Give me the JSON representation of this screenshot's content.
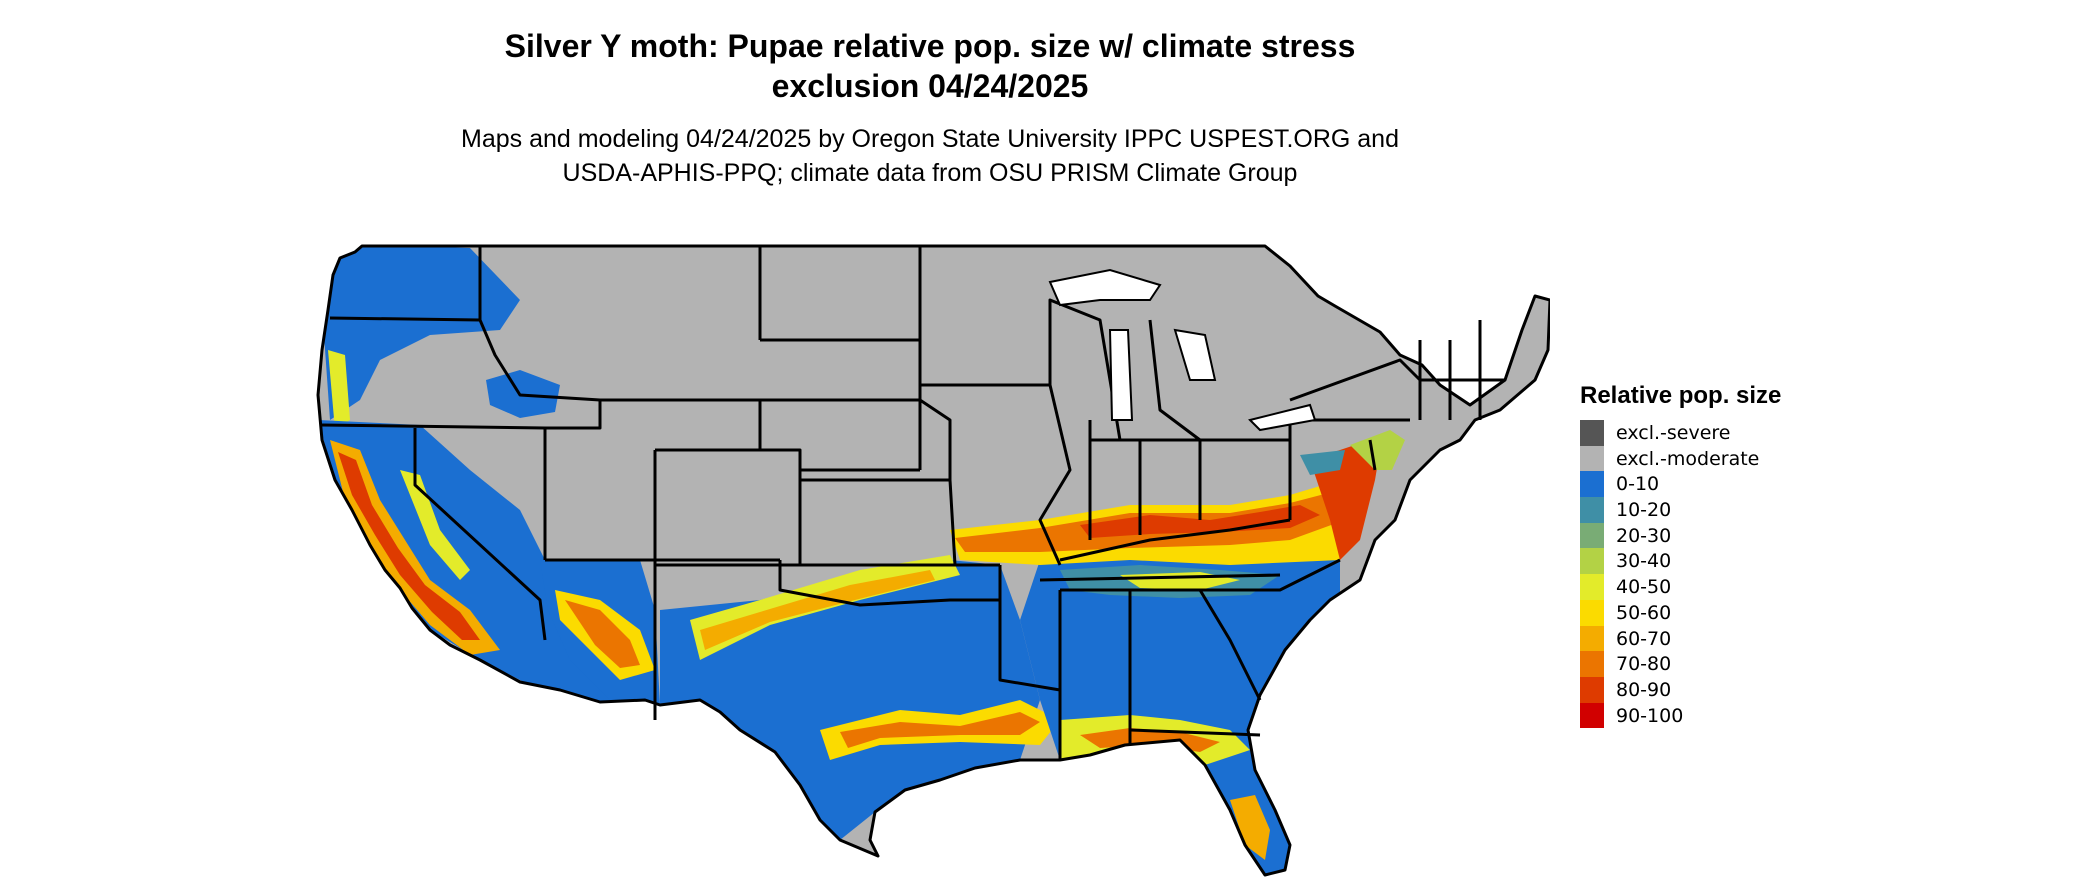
{
  "title": {
    "line1": "Silver Y moth: Pupae relative pop. size w/ climate stress",
    "line2": "exclusion 04/24/2025"
  },
  "subtitle": {
    "line1": "Maps and modeling 04/24/2025 by Oregon State University IPPC USPEST.ORG and",
    "line2": "USDA-APHIS-PPQ; climate data from OSU PRISM Climate Group"
  },
  "legend": {
    "title": "Relative pop. size",
    "items": [
      {
        "label": "excl.-severe",
        "color": "#555555"
      },
      {
        "label": "excl.-moderate",
        "color": "#b3b3b3"
      },
      {
        "label": "0-10",
        "color": "#1b6fd1"
      },
      {
        "label": "10-20",
        "color": "#3f8fa6"
      },
      {
        "label": "20-30",
        "color": "#79ac75"
      },
      {
        "label": "30-40",
        "color": "#b3d245"
      },
      {
        "label": "40-50",
        "color": "#e3eb2a"
      },
      {
        "label": "50-60",
        "color": "#fbdb00"
      },
      {
        "label": "60-70",
        "color": "#f4ac00"
      },
      {
        "label": "70-80",
        "color": "#eb7500"
      },
      {
        "label": "80-90",
        "color": "#de3b00"
      },
      {
        "label": "90-100",
        "color": "#d10000"
      }
    ]
  }
}
